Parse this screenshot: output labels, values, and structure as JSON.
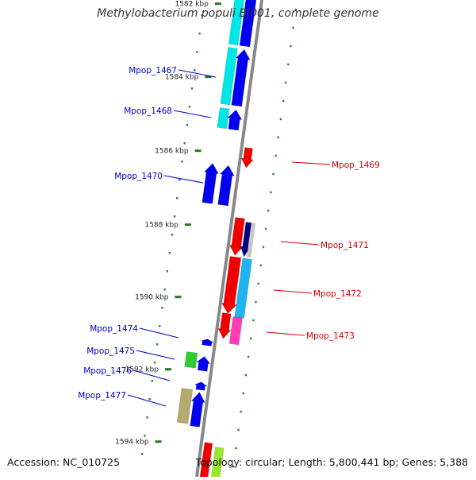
{
  "title": "Methylobacterium populi BJ001, complete genome",
  "accession": "Accession: NC_010725",
  "topology": "Topology: circular; Length: 5,800,441 bp; Genes: 5,388",
  "colors": {
    "background": "#ffffff",
    "backbone": "#888888",
    "kbp_tick": "#1f7a1f",
    "minor_tick": "#2a8a2a",
    "label_forward": "#0000cc",
    "label_reverse": "#d40000"
  },
  "kbp_labels": [
    "1582 kbp",
    "1584 kbp",
    "1586 kbp",
    "1588 kbp",
    "1590 kbp",
    "1592 kbp",
    "1594 kbp"
  ],
  "genes": [
    {
      "label": "",
      "strand": "forward",
      "colors": [
        "#00e5e5",
        "#0000ee"
      ]
    },
    {
      "label": "Mpop_1467",
      "strand": "forward",
      "colors": [
        "#00e5e5",
        "#0000ee"
      ]
    },
    {
      "label": "Mpop_1468",
      "strand": "forward",
      "colors": [
        "#00e5e5",
        "#0000ee"
      ]
    },
    {
      "label": "Mpop_1469",
      "strand": "reverse",
      "colors": [
        "#ee0000"
      ]
    },
    {
      "label": "Mpop_1470",
      "strand": "forward",
      "colors": [
        "#0000ee",
        "#0000ee"
      ]
    },
    {
      "label": "Mpop_1471",
      "strand": "reverse",
      "colors": [
        "#ee0000",
        "#000080",
        "#c8c8c8"
      ]
    },
    {
      "label": "Mpop_1472",
      "strand": "reverse",
      "colors": [
        "#ee0000",
        "#1eb4f0"
      ]
    },
    {
      "label": "Mpop_1473",
      "strand": "reverse",
      "colors": [
        "#ee0000",
        "#ff3cb4"
      ]
    },
    {
      "label": "Mpop_1474",
      "strand": "forward",
      "colors": [
        "#0000ee"
      ]
    },
    {
      "label": "Mpop_1475",
      "strand": "forward",
      "colors": [
        "#33cc33",
        "#0000ee"
      ]
    },
    {
      "label": "Mpop_1476",
      "strand": "forward",
      "colors": [
        "#0000ee"
      ]
    },
    {
      "label": "Mpop_1477",
      "strand": "forward",
      "colors": [
        "#b4aa6e",
        "#0000ee"
      ]
    },
    {
      "label": "",
      "strand": "reverse",
      "colors": [
        "#ee0000",
        "#99e633"
      ]
    }
  ]
}
